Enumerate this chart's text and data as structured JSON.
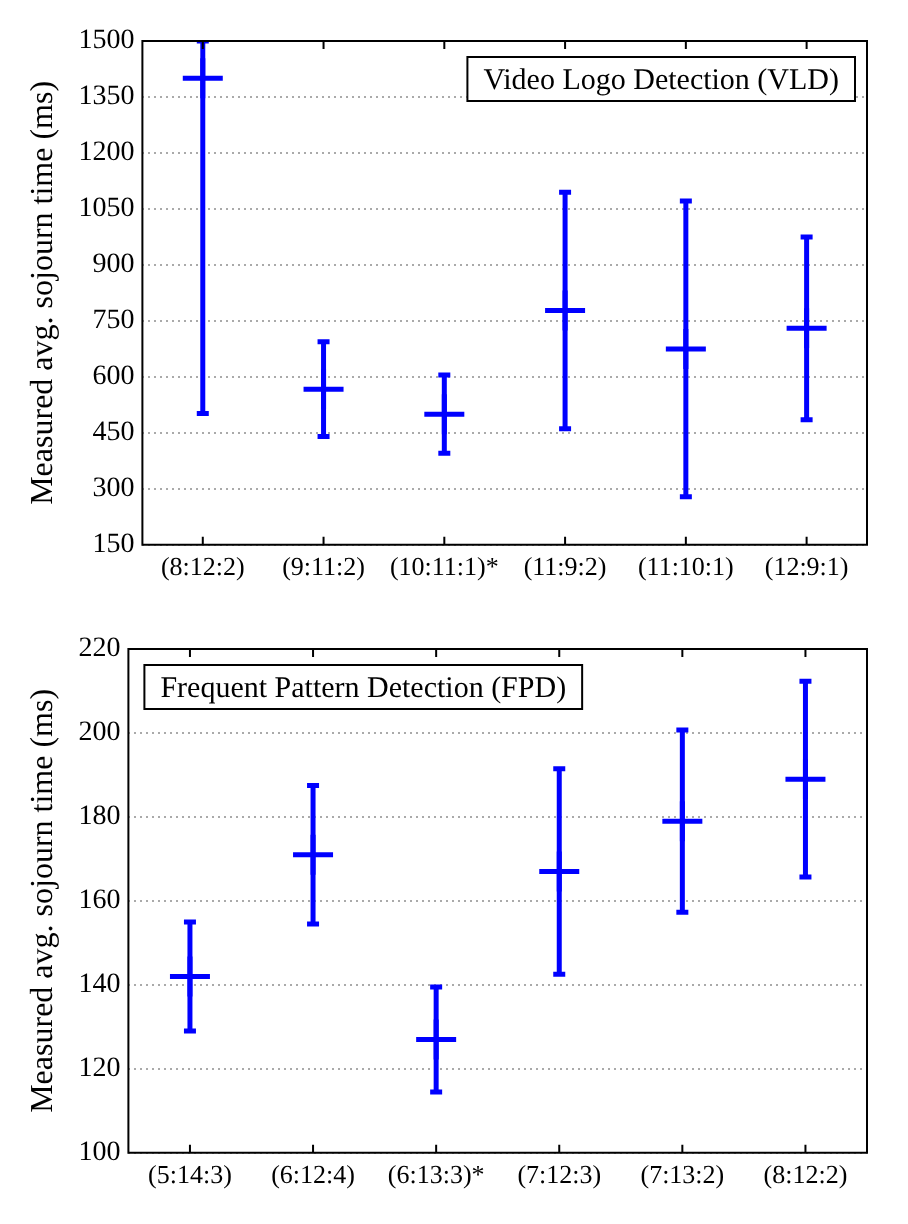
{
  "chart_data": [
    {
      "type": "scatter",
      "title": "Video Logo Detection (VLD)",
      "ylabel": "Measured avg. sojourn time (ms)",
      "categories": [
        "(8:12:2)",
        "(9:11:2)",
        "(10:11:1)*",
        "(11:9:2)",
        "(11:10:1)",
        "(12:9:1)"
      ],
      "series": [
        {
          "color": "#0000ff",
          "values": [
            1400,
            567,
            500,
            778,
            675,
            730
          ],
          "errors": [
            [
              502,
              1500
            ],
            127,
            105,
            317,
            396,
            245
          ]
        }
      ],
      "marker": "cross",
      "ylim": [
        150,
        1500
      ],
      "yticks": [
        150,
        300,
        450,
        600,
        750,
        900,
        1050,
        1200,
        1350,
        1500
      ],
      "grid": "y"
    },
    {
      "type": "scatter",
      "title": "Frequent Pattern Detection (FPD)",
      "ylabel": "Measured avg. sojourn time (ms)",
      "categories": [
        "(5:14:3)",
        "(6:12:4)",
        "(6:13:3)*",
        "(7:12:3)",
        "(7:13:2)",
        "(8:12:2)"
      ],
      "series": [
        {
          "color": "#0000ff",
          "values": [
            142,
            171,
            127,
            167,
            179,
            189
          ],
          "errors": [
            13,
            16.5,
            12.5,
            24.5,
            21.7,
            23.3
          ]
        }
      ],
      "marker": "cross",
      "ylim": [
        100,
        220
      ],
      "yticks": [
        100,
        120,
        140,
        160,
        180,
        200,
        220
      ],
      "grid": "y"
    }
  ]
}
